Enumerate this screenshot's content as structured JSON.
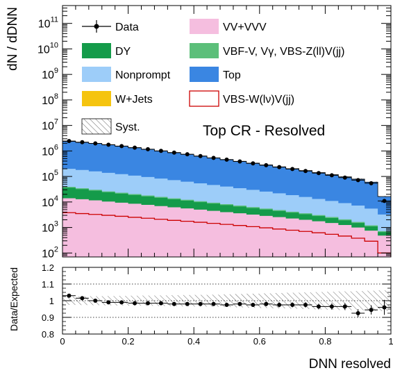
{
  "chart_data": [
    {
      "type": "area",
      "title": "",
      "annotation": "Top CR - Resolved",
      "ylabel": "dN / dDNN",
      "xlabel": "",
      "yscale": "log",
      "xlim": [
        0,
        1
      ],
      "ylim": [
        70,
        500000000000
      ],
      "y_tick_labels": [
        {
          "base": "10",
          "exp": "2",
          "value": 100
        },
        {
          "base": "10",
          "exp": "3",
          "value": 1000
        },
        {
          "base": "10",
          "exp": "4",
          "value": 10000
        },
        {
          "base": "10",
          "exp": "5",
          "value": 100000
        },
        {
          "base": "10",
          "exp": "6",
          "value": 1000000
        },
        {
          "base": "10",
          "exp": "7",
          "value": 10000000
        },
        {
          "base": "10",
          "exp": "8",
          "value": 100000000
        },
        {
          "base": "10",
          "exp": "9",
          "value": 1000000000
        },
        {
          "base": "10",
          "exp": "10",
          "value": 10000000000
        },
        {
          "base": "10",
          "exp": "11",
          "value": 100000000000
        }
      ],
      "x_bin_edges": [
        0,
        0.04,
        0.08,
        0.12,
        0.16,
        0.2,
        0.24,
        0.28,
        0.32,
        0.36,
        0.4,
        0.44,
        0.48,
        0.52,
        0.56,
        0.6,
        0.64,
        0.68,
        0.72,
        0.76,
        0.8,
        0.84,
        0.88,
        0.92,
        0.96,
        1
      ],
      "legend": {
        "placement": "top",
        "entries": [
          {
            "label": "Data",
            "style": "marker"
          },
          {
            "label": "VV+VVV",
            "style": "fill",
            "color": "#f5bedf"
          },
          {
            "label": "DY",
            "style": "fill",
            "color": "#149b4a"
          },
          {
            "label": "VBF-V, Vγ, VBS-Z(ll)V(jj)",
            "style": "fill",
            "color": "#5cbf7a"
          },
          {
            "label": "Nonprompt",
            "style": "fill",
            "color": "#9dcdf9"
          },
          {
            "label": "Top",
            "style": "fill",
            "color": "#3a86e2"
          },
          {
            "label": "W+Jets",
            "style": "fill",
            "color": "#f5c40f"
          },
          {
            "label": "VBS-W(lν)V(jj)",
            "style": "line",
            "color": "#cc0000"
          },
          {
            "label": "Syst.",
            "style": "hatch"
          }
        ]
      },
      "series": [
        {
          "name": "VV+VVV",
          "color": "#f5bedf",
          "values": [
            14000,
            12800,
            11600,
            10400,
            9400,
            8500,
            7700,
            6900,
            6200,
            5600,
            5000,
            4500,
            4000,
            3600,
            3200,
            2850,
            2550,
            2250,
            2000,
            1750,
            1500,
            1250,
            1000,
            750,
            480
          ]
        },
        {
          "name": "DY",
          "color": "#149b4a",
          "values": [
            22000,
            19000,
            16000,
            13500,
            11800,
            10200,
            8800,
            7600,
            6500,
            5600,
            4800,
            4100,
            3500,
            3000,
            2550,
            2200,
            1850,
            1550,
            1300,
            1050,
            850,
            650,
            500,
            350,
            180
          ]
        },
        {
          "name": "VBF-V, Vγ, VBS-Z(ll)V(jj)",
          "color": "#5cbf7a",
          "values": [
            3000,
            2700,
            2400,
            2100,
            1850,
            1650,
            1450,
            1300,
            1150,
            1000,
            880,
            780,
            690,
            610,
            540,
            470,
            410,
            360,
            310,
            265,
            225,
            185,
            150,
            110,
            60
          ]
        },
        {
          "name": "Nonprompt",
          "color": "#9dcdf9",
          "values": [
            160000,
            145000,
            128000,
            113000,
            100000,
            88000,
            77000,
            67000,
            58000,
            50000,
            43000,
            37000,
            32000,
            27500,
            23500,
            20000,
            17000,
            14400,
            12100,
            10100,
            8400,
            6900,
            5600,
            4300,
            2500
          ]
        },
        {
          "name": "Top",
          "color": "#3a86e2",
          "values": [
            2150000,
            1970000,
            1790000,
            1590000,
            1400000,
            1220000,
            1060000,
            910000,
            780000,
            670000,
            570000,
            485000,
            415000,
            355000,
            300000,
            255000,
            215000,
            182000,
            153000,
            128000,
            106000,
            87000,
            71000,
            54000,
            13000
          ]
        },
        {
          "name": "W+Jets",
          "color": "#f5c40f",
          "values": [
            20000,
            17000,
            15000,
            13000,
            11000,
            9500,
            8200,
            7000,
            6000,
            5100,
            4300,
            3700,
            3100,
            2600,
            2200,
            1850,
            1550,
            1300,
            1100,
            900,
            750,
            600,
            480,
            370,
            150
          ]
        }
      ],
      "signal": {
        "name": "VBS-W(lν)V(jj)",
        "color": "#cc0000",
        "values": [
          3800,
          3500,
          3250,
          3000,
          2750,
          2500,
          2300,
          2100,
          1900,
          1750,
          1600,
          1450,
          1320,
          1200,
          1080,
          970,
          870,
          780,
          700,
          620,
          540,
          460,
          380,
          290,
          100
        ]
      },
      "data": {
        "name": "Data",
        "values": [
          2450000,
          2200000,
          1980000,
          1760000,
          1550000,
          1350000,
          1170000,
          1010000,
          860000,
          740000,
          630000,
          535000,
          455000,
          387000,
          326000,
          276000,
          233000,
          196000,
          164000,
          136000,
          111000,
          90000,
          72000,
          54000,
          11000
        ]
      }
    },
    {
      "type": "scatter",
      "title": "",
      "ylabel": "Data/Expected",
      "xlabel": "DNN resolved",
      "xlim": [
        0,
        1
      ],
      "ylim": [
        0.8,
        1.2
      ],
      "x_tick_labels": [
        "0",
        "0.2",
        "0.4",
        "0.6",
        "0.8",
        "1"
      ],
      "x_ticks": [
        0,
        0.2,
        0.4,
        0.6,
        0.8,
        1
      ],
      "y_tick_labels": [
        "0.8",
        "0.9",
        "1",
        "1.1",
        "1.2"
      ],
      "y_ticks": [
        0.8,
        0.9,
        1.0,
        1.1,
        1.2
      ],
      "grid": "horizontal dotted at 0.9, 1, 1.1",
      "x": [
        0.02,
        0.06,
        0.1,
        0.14,
        0.18,
        0.22,
        0.26,
        0.3,
        0.34,
        0.38,
        0.42,
        0.46,
        0.5,
        0.54,
        0.58,
        0.62,
        0.66,
        0.7,
        0.74,
        0.78,
        0.82,
        0.86,
        0.9,
        0.94,
        0.98
      ],
      "values": [
        1.03,
        1.015,
        1.0,
        0.99,
        0.99,
        0.985,
        0.985,
        0.985,
        0.98,
        0.98,
        0.98,
        0.98,
        0.975,
        0.98,
        0.975,
        0.98,
        0.975,
        0.975,
        0.975,
        0.965,
        0.965,
        0.965,
        0.925,
        0.945,
        0.96
      ],
      "errors": [
        0.008,
        0.008,
        0.008,
        0.008,
        0.008,
        0.008,
        0.009,
        0.009,
        0.009,
        0.01,
        0.01,
        0.011,
        0.011,
        0.012,
        0.012,
        0.013,
        0.014,
        0.015,
        0.016,
        0.017,
        0.019,
        0.021,
        0.024,
        0.028,
        0.045
      ],
      "syst_band": [
        0.025,
        0.026,
        0.027,
        0.028,
        0.029,
        0.03,
        0.031,
        0.032,
        0.033,
        0.034,
        0.035,
        0.036,
        0.038,
        0.04,
        0.042,
        0.044,
        0.046,
        0.048,
        0.05,
        0.052,
        0.054,
        0.056,
        0.058,
        0.06,
        0.062
      ]
    }
  ]
}
